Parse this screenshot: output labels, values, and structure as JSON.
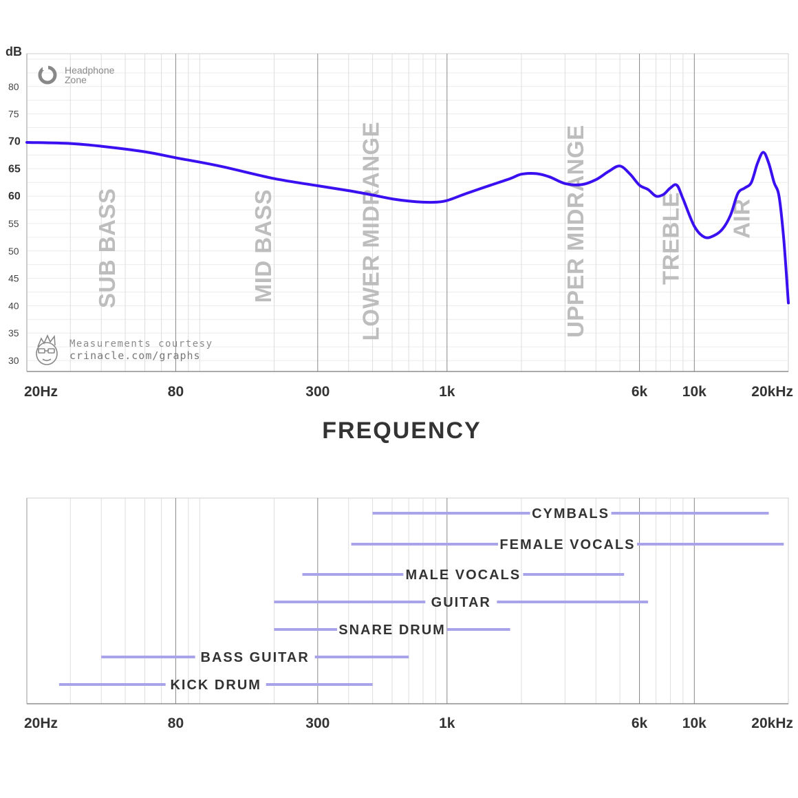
{
  "logo": {
    "line1": "Headphone",
    "line2": "Zone"
  },
  "credit": {
    "line1": "Measurements courtesy",
    "line2": "crinacle.com/graphs"
  },
  "colors": {
    "curve": "#3b10f0",
    "range_bar": "#a9a4ea",
    "grid_major": "#888888",
    "grid_minor": "#dddddd",
    "band_label": "#bdbdbd"
  },
  "chart_data": [
    {
      "type": "line",
      "title": "",
      "xlabel": "FREQUENCY",
      "ylabel": "dB",
      "x_scale": "log",
      "xlim": [
        20,
        24000
      ],
      "ylim": [
        28,
        86
      ],
      "grid": true,
      "x_ticks": [
        {
          "value": 20,
          "label": "20Hz"
        },
        {
          "value": 80,
          "label": "80"
        },
        {
          "value": 300,
          "label": "300"
        },
        {
          "value": 1000,
          "label": "1k"
        },
        {
          "value": 6000,
          "label": "6k"
        },
        {
          "value": 10000,
          "label": "10k"
        },
        {
          "value": 20000,
          "label": "20kHz"
        }
      ],
      "y_ticks": [
        {
          "value": 30,
          "label": "30",
          "bold": false
        },
        {
          "value": 35,
          "label": "35",
          "bold": false
        },
        {
          "value": 40,
          "label": "40",
          "bold": false
        },
        {
          "value": 45,
          "label": "45",
          "bold": false
        },
        {
          "value": 50,
          "label": "50",
          "bold": false
        },
        {
          "value": 55,
          "label": "55",
          "bold": false
        },
        {
          "value": 60,
          "label": "60",
          "bold": true
        },
        {
          "value": 65,
          "label": "65",
          "bold": true
        },
        {
          "value": 70,
          "label": "70",
          "bold": true
        },
        {
          "value": 75,
          "label": "75",
          "bold": false
        },
        {
          "value": 80,
          "label": "80",
          "bold": false
        }
      ],
      "bands": [
        {
          "label": "SUB BASS",
          "x": 42,
          "y": 50.5
        },
        {
          "label": "MID BASS",
          "x": 180,
          "y": 50.9
        },
        {
          "label": "LOWER MIDRANGE",
          "x": 490,
          "y": 53.6
        },
        {
          "label": "UPPER MIDRANGE",
          "x": 3300,
          "y": 53.6
        },
        {
          "label": "TREBLE",
          "x": 8000,
          "y": 52.3
        },
        {
          "label": "AIR",
          "x": 15500,
          "y": 55.9
        }
      ],
      "series": [
        {
          "x": [
            20,
            30,
            40,
            60,
            80,
            120,
            200,
            300,
            400,
            500,
            600,
            700,
            800,
            900,
            1000,
            1200,
            1500,
            1800,
            2000,
            2300,
            2600,
            3000,
            3500,
            4000,
            4500,
            5000,
            5500,
            6000,
            6500,
            7000,
            7500,
            8000,
            8500,
            9000,
            10000,
            11000,
            12000,
            13000,
            14000,
            15000,
            16000,
            17000,
            18000,
            19000,
            20000,
            21000,
            22000,
            23000,
            24000
          ],
          "y": [
            69.8,
            69.6,
            69.1,
            68.1,
            67.0,
            65.5,
            63.2,
            61.9,
            61.0,
            60.2,
            59.5,
            59.1,
            58.9,
            58.9,
            59.2,
            60.5,
            62.0,
            63.2,
            64.0,
            64.1,
            63.5,
            62.3,
            62.1,
            63.0,
            64.5,
            65.5,
            64.0,
            62.0,
            61.2,
            60.0,
            60.3,
            61.5,
            62.0,
            59.5,
            54.5,
            52.5,
            52.8,
            54.0,
            56.5,
            60.5,
            61.5,
            62.5,
            66.0,
            68.0,
            66.0,
            62.5,
            60.0,
            52.0,
            40.5
          ]
        }
      ]
    },
    {
      "type": "range",
      "x_scale": "log",
      "xlim": [
        20,
        24000
      ],
      "x_ticks": [
        {
          "value": 20,
          "label": "20Hz"
        },
        {
          "value": 80,
          "label": "80"
        },
        {
          "value": 300,
          "label": "300"
        },
        {
          "value": 1000,
          "label": "1k"
        },
        {
          "value": 6000,
          "label": "6k"
        },
        {
          "value": 10000,
          "label": "10k"
        },
        {
          "value": 20000,
          "label": "20kHz"
        }
      ],
      "instruments": [
        {
          "label": "CYMBALS",
          "low": 500,
          "high": 20000
        },
        {
          "label": "FEMALE VOCALS",
          "low": 410,
          "high": 23000
        },
        {
          "label": "MALE VOCALS",
          "low": 260,
          "high": 5200
        },
        {
          "label": "GUITAR",
          "low": 200,
          "high": 6500
        },
        {
          "label": "SNARE DRUM",
          "low": 200,
          "high": 1800
        },
        {
          "label": "BASS GUITAR",
          "low": 40,
          "high": 700
        },
        {
          "label": "KICK DRUM",
          "low": 27,
          "high": 500
        }
      ]
    }
  ]
}
